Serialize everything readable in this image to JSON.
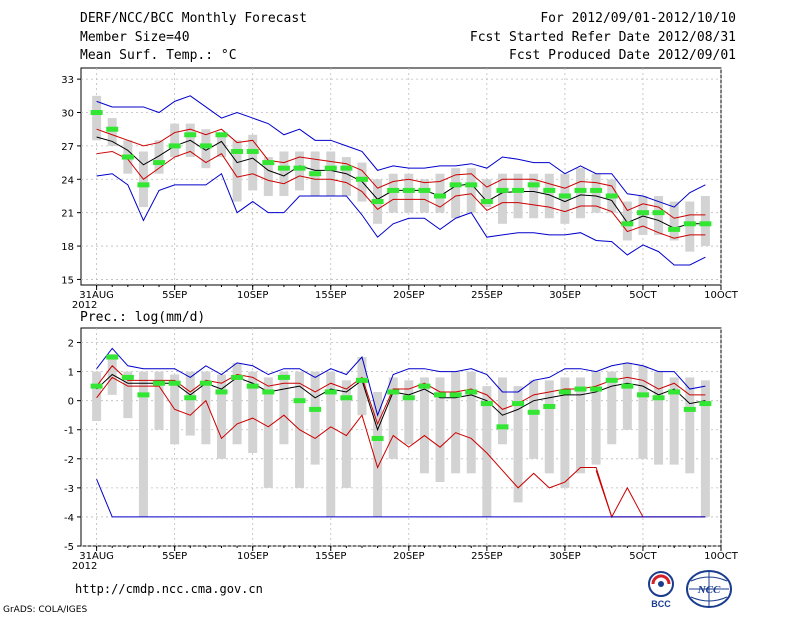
{
  "header": {
    "title": "DERF/NCC/BCC Monthly Forecast",
    "member_size": "Member Size=40",
    "variable1": "Mean Surf. Temp.: °C",
    "period": "For 2012/09/01-2012/10/10",
    "fcst_started": "Fcst Started Refer Date 2012/08/31",
    "fcst_produced": "Fcst Produced Date 2012/09/01"
  },
  "footer": {
    "url": "http://cmdp.ncc.cma.gov.cn",
    "grads": "GrADS: COLA/IGES",
    "logo_bcc": "BCC",
    "logo_ncc": "NCC"
  },
  "chart_data": [
    {
      "type": "line",
      "title": "Mean Surf. Temp.: °C",
      "x_tick_labels": [
        "31AUG",
        "5SEP",
        "10SEP",
        "15SEP",
        "20SEP",
        "25SEP",
        "30SEP",
        "5OCT",
        "10OCT"
      ],
      "x_year_label": "2012",
      "ylim": [
        14.5,
        34
      ],
      "yticks": [
        15,
        18,
        21,
        24,
        27,
        30,
        33
      ],
      "x": [
        1,
        2,
        3,
        4,
        5,
        6,
        7,
        8,
        9,
        10,
        11,
        12,
        13,
        14,
        15,
        16,
        17,
        18,
        19,
        20,
        21,
        22,
        23,
        24,
        25,
        26,
        27,
        28,
        29,
        30,
        31,
        32,
        33,
        34,
        35,
        36,
        37,
        38,
        39,
        40
      ],
      "box_low": [
        27.5,
        27,
        24.5,
        21.5,
        24.5,
        26,
        26,
        25,
        26,
        22,
        23,
        22.5,
        22.5,
        23,
        22.5,
        22.5,
        22.5,
        22,
        20,
        21,
        21,
        21,
        21,
        20.5,
        21,
        21.5,
        20,
        20.5,
        20.5,
        20.5,
        20,
        20.5,
        21,
        21,
        18.5,
        19,
        19,
        18.5,
        17.5,
        18
      ],
      "box_high": [
        31.5,
        29.5,
        27.5,
        26.5,
        27.5,
        29,
        29,
        28.5,
        28,
        27.5,
        28,
        26,
        26.5,
        26.5,
        26.5,
        26.5,
        26,
        25.5,
        24,
        24.5,
        24.5,
        24,
        24.5,
        25,
        25,
        24,
        24.5,
        24.5,
        24.5,
        24.5,
        24.5,
        25,
        24.5,
        24,
        22,
        22.5,
        22.5,
        22,
        22,
        22.5
      ],
      "green": [
        30,
        28.5,
        26,
        23.5,
        25.5,
        27,
        28,
        27,
        28,
        26.5,
        26.5,
        25.5,
        25,
        25,
        24.5,
        25,
        25,
        24,
        22,
        23,
        23,
        23,
        22.5,
        23.5,
        23.5,
        22,
        23,
        23,
        23.5,
        23,
        22.5,
        23,
        23,
        22.5,
        20,
        21,
        21,
        19.5,
        20,
        20
      ],
      "series": [
        {
          "name": "ensemble max",
          "color": "#0000cc",
          "values": [
            31,
            30.5,
            30.5,
            30.5,
            30,
            31,
            31.5,
            30.5,
            29.5,
            30,
            29.5,
            29,
            28,
            28.5,
            27.5,
            27.5,
            27,
            26.5,
            24.8,
            25.2,
            25,
            25,
            25.2,
            25.2,
            25.4,
            25,
            26,
            25.8,
            25.5,
            25.5,
            24.5,
            25.2,
            24.5,
            24.5,
            22.7,
            22.5,
            22,
            21.5,
            22.8,
            23.5
          ]
        },
        {
          "name": "upper spread",
          "color": "#cc0000",
          "values": [
            28.5,
            28,
            27.5,
            27,
            27.3,
            28.2,
            28.5,
            28,
            28.5,
            27.3,
            27.5,
            25.7,
            25.5,
            26,
            25.8,
            25.6,
            25.4,
            24.8,
            23.2,
            23.8,
            24,
            23.7,
            23.8,
            24.4,
            24.5,
            23.3,
            24,
            24,
            24,
            23.6,
            23.2,
            23.8,
            23.7,
            23.4,
            21.2,
            21.8,
            21.5,
            20.5,
            20.8,
            20.8
          ]
        },
        {
          "name": "ensemble mean",
          "color": "#000000",
          "values": [
            27.8,
            27.4,
            26.6,
            25.3,
            26.1,
            27,
            27.5,
            26.6,
            27.4,
            25.5,
            25.9,
            24.8,
            24.3,
            25.2,
            24.8,
            24.8,
            24.5,
            23.8,
            22.2,
            23,
            23,
            23,
            22.5,
            23.4,
            23.6,
            22,
            22.8,
            22.9,
            22.9,
            22.6,
            22,
            22.6,
            22.5,
            22.1,
            20.1,
            20.7,
            20.3,
            19.6,
            20,
            20
          ]
        },
        {
          "name": "lower spread",
          "color": "#cc0000",
          "values": [
            26.3,
            26.5,
            25.8,
            24,
            25,
            26,
            26.5,
            25.5,
            26.3,
            24.2,
            24.5,
            23.9,
            23.6,
            24.3,
            24,
            24,
            23.7,
            22.9,
            21.3,
            22.2,
            22.2,
            22.2,
            21.5,
            22.5,
            22.7,
            21.2,
            21.9,
            21.9,
            21.7,
            21.5,
            21.1,
            21.6,
            21.6,
            21.1,
            19.3,
            19.8,
            19.2,
            18.7,
            19,
            19
          ]
        },
        {
          "name": "ensemble min",
          "color": "#0000cc",
          "values": [
            24.3,
            24.5,
            23.5,
            20.3,
            23,
            23.5,
            23.5,
            23.5,
            24.5,
            21,
            22,
            21,
            21,
            22.5,
            22.5,
            22.5,
            22.5,
            20.8,
            18.8,
            20,
            20.5,
            20.5,
            19.5,
            20.5,
            21,
            18.8,
            19,
            19.2,
            19.2,
            19,
            19,
            19.2,
            18.5,
            18.4,
            17.2,
            18.1,
            17.5,
            16.3,
            16.3,
            17
          ]
        }
      ]
    },
    {
      "type": "line",
      "title": "Prec.: log(mm/d)",
      "x_tick_labels": [
        "31AUG",
        "5SEP",
        "10SEP",
        "15SEP",
        "20SEP",
        "25SEP",
        "30SEP",
        "5OCT",
        "10OCT"
      ],
      "x_year_label": "2012",
      "ylim": [
        -5,
        2.5
      ],
      "yticks": [
        -5,
        -4,
        -3,
        -2,
        -1,
        0,
        1,
        2
      ],
      "x": [
        1,
        2,
        3,
        4,
        5,
        6,
        7,
        8,
        9,
        10,
        11,
        12,
        13,
        14,
        15,
        16,
        17,
        18,
        19,
        20,
        21,
        22,
        23,
        24,
        25,
        26,
        27,
        28,
        29,
        30,
        31,
        32,
        33,
        34,
        35,
        36,
        37,
        38,
        39,
        40
      ],
      "box_low": [
        -0.7,
        0.2,
        -0.6,
        -4,
        -1,
        -1.5,
        -1.2,
        -1.5,
        -2,
        -1.5,
        -1.8,
        -3,
        -1.5,
        -3,
        -2.2,
        -4,
        -3,
        -0.5,
        -4,
        -2,
        -1.5,
        -2.5,
        -2.8,
        -2.5,
        -2.5,
        -4,
        -1.5,
        -3.5,
        -2,
        -2.5,
        -3,
        -2.5,
        -2.2,
        -1.5,
        -1,
        -2,
        -2.2,
        -2.2,
        -2.5,
        -4
      ],
      "box_high": [
        1,
        1.6,
        1,
        1,
        1,
        0.9,
        1,
        1,
        0.9,
        1.3,
        1,
        0.8,
        1,
        1,
        1,
        1,
        0.7,
        1.5,
        0.3,
        0.8,
        0.7,
        0.8,
        0.8,
        1,
        1,
        0.5,
        0.8,
        0.5,
        0.7,
        0.7,
        0.8,
        0.8,
        1,
        1,
        1.3,
        1.2,
        1,
        0.8,
        0.8,
        0.7
      ],
      "green": [
        0.5,
        1.5,
        0.8,
        0.2,
        0.6,
        0.6,
        0.1,
        0.6,
        0.3,
        0.8,
        0.5,
        0.3,
        0.8,
        0,
        -0.3,
        0.3,
        0.1,
        0.7,
        -1.3,
        0.3,
        0.1,
        0.5,
        0.2,
        0.2,
        0.3,
        -0.1,
        -0.9,
        -0.1,
        -0.4,
        -0.2,
        0.3,
        0.4,
        0.4,
        0.7,
        0.5,
        0.2,
        0.1,
        0.3,
        -0.3,
        -0.1
      ],
      "series": [
        {
          "name": "ensemble max",
          "color": "#0000cc",
          "values": [
            1.1,
            1.8,
            1.2,
            1.1,
            1.1,
            1.1,
            0.8,
            1.2,
            0.9,
            1.3,
            1.2,
            0.9,
            1.1,
            1.1,
            0.8,
            1.1,
            0.9,
            1.5,
            -0.5,
            0.9,
            1.1,
            1.1,
            1,
            1,
            1.1,
            0.9,
            0.3,
            0.3,
            0.7,
            0.8,
            1.1,
            1.1,
            1,
            1.2,
            1.3,
            1.2,
            1,
            1,
            0.4,
            0.5
          ]
        },
        {
          "name": "upper spread",
          "color": "#cc0000",
          "values": [
            0.5,
            1.2,
            0.7,
            0.7,
            0.7,
            0.7,
            0.3,
            0.7,
            0.6,
            0.9,
            0.8,
            0.5,
            0.6,
            0.6,
            0.3,
            0.6,
            0.4,
            0.8,
            -0.8,
            0.4,
            0.4,
            0.6,
            0.3,
            0.3,
            0.4,
            0.2,
            -0.3,
            -0.1,
            0.2,
            0.3,
            0.4,
            0.4,
            0.5,
            0.7,
            0.8,
            0.7,
            0.4,
            0.6,
            0.2,
            0.2
          ]
        },
        {
          "name": "ensemble mean",
          "color": "#000000",
          "values": [
            0.4,
            0.9,
            0.6,
            0.6,
            0.6,
            0.6,
            0.2,
            0.6,
            0.4,
            0.8,
            0.6,
            0.3,
            0.4,
            0.5,
            0.1,
            0.4,
            0.3,
            0.7,
            -1,
            0.3,
            0.2,
            0.4,
            0.1,
            0.1,
            0.2,
            0,
            -0.5,
            -0.3,
            0,
            0.1,
            0.2,
            0.2,
            0.3,
            0.5,
            0.6,
            0.5,
            0.2,
            0.4,
            -0.1,
            0
          ]
        },
        {
          "name": "lower spread",
          "color": "#cc0000",
          "values": [
            0.1,
            0.8,
            0.5,
            0.5,
            0.5,
            -0.3,
            -0.5,
            0,
            -1.3,
            -0.8,
            -0.6,
            -0.9,
            -0.5,
            -1,
            -1.3,
            -0.9,
            -1.2,
            -0.5,
            -2.3,
            -1.2,
            -1.6,
            -1.2,
            -1.6,
            -1.1,
            -1.3,
            -1.8,
            -2.4,
            -3,
            -2.5,
            -3,
            -2.8,
            -2.3,
            -2.3,
            -4,
            -4,
            -4,
            -4,
            -4,
            -4,
            -4
          ]
        },
        {
          "name": "lower spread tail",
          "color": "#cc0000",
          "values": [
            null,
            null,
            null,
            null,
            null,
            null,
            null,
            null,
            null,
            null,
            null,
            null,
            null,
            null,
            null,
            null,
            null,
            null,
            null,
            null,
            null,
            null,
            null,
            null,
            null,
            null,
            null,
            null,
            null,
            null,
            null,
            null,
            -2.4,
            -4,
            -3,
            -4,
            null,
            null,
            null,
            null
          ]
        },
        {
          "name": "ensemble min",
          "color": "#0000cc",
          "values": [
            -2.7,
            -4,
            -4,
            -4,
            -4,
            -4,
            -4,
            -4,
            -4,
            -4,
            -4,
            -4,
            -4,
            -4,
            -4,
            -4,
            -4,
            -4,
            -4,
            -4,
            -4,
            -4,
            -4,
            -4,
            -4,
            -4,
            -4,
            -4,
            -4,
            -4,
            -4,
            -4,
            -4,
            -4,
            -4,
            -4,
            -4,
            -4,
            -4,
            -4
          ]
        }
      ]
    }
  ]
}
